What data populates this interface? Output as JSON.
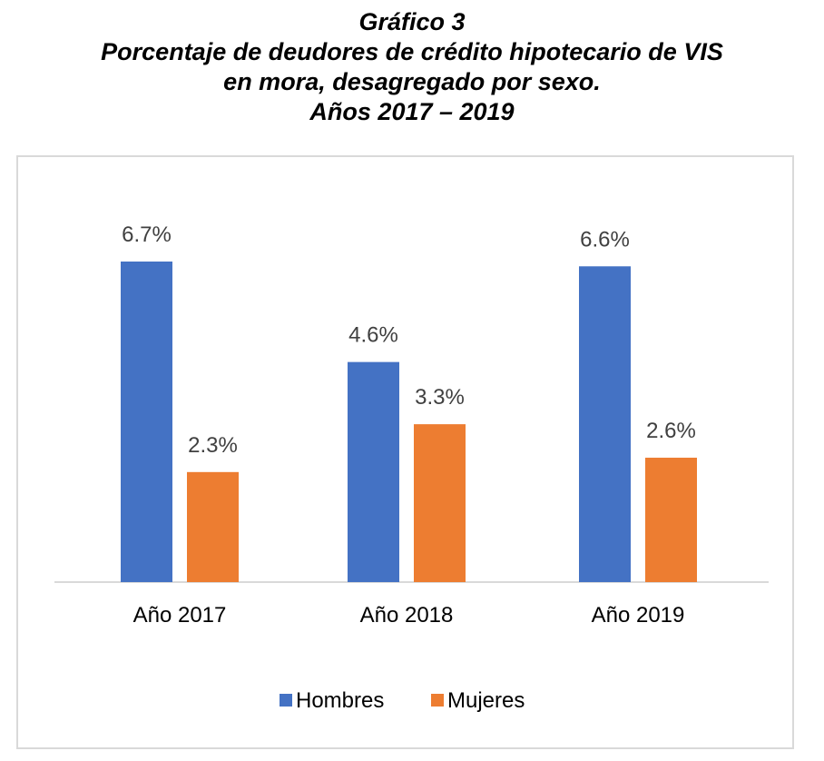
{
  "title": {
    "line1": "Gráfico 3",
    "line2": "Porcentaje de deudores de crédito hipotecario de VIS",
    "line3": "en mora, desagregado por sexo.",
    "line4": "Años 2017 – 2019"
  },
  "chart_data": {
    "type": "bar",
    "title": "Gráfico 3 Porcentaje de deudores de crédito hipotecario de VIS en mora, desagregado por sexo. Años 2017 – 2019",
    "categories": [
      "Año 2017",
      "Año 2018",
      "Año 2019"
    ],
    "series": [
      {
        "name": "Hombres",
        "color": "#4472c4",
        "values": [
          6.7,
          4.6,
          6.6
        ],
        "labels": [
          "6.7%",
          "4.6%",
          "6.6%"
        ]
      },
      {
        "name": "Mujeres",
        "color": "#ed7d31",
        "values": [
          2.3,
          3.3,
          2.6
        ],
        "labels": [
          "2.3%",
          "3.3%",
          "2.6%"
        ]
      }
    ],
    "xlabel": "",
    "ylabel": "",
    "ylim": [
      0,
      6.7
    ],
    "unit": "%",
    "grid": false,
    "legend": "bottom"
  }
}
